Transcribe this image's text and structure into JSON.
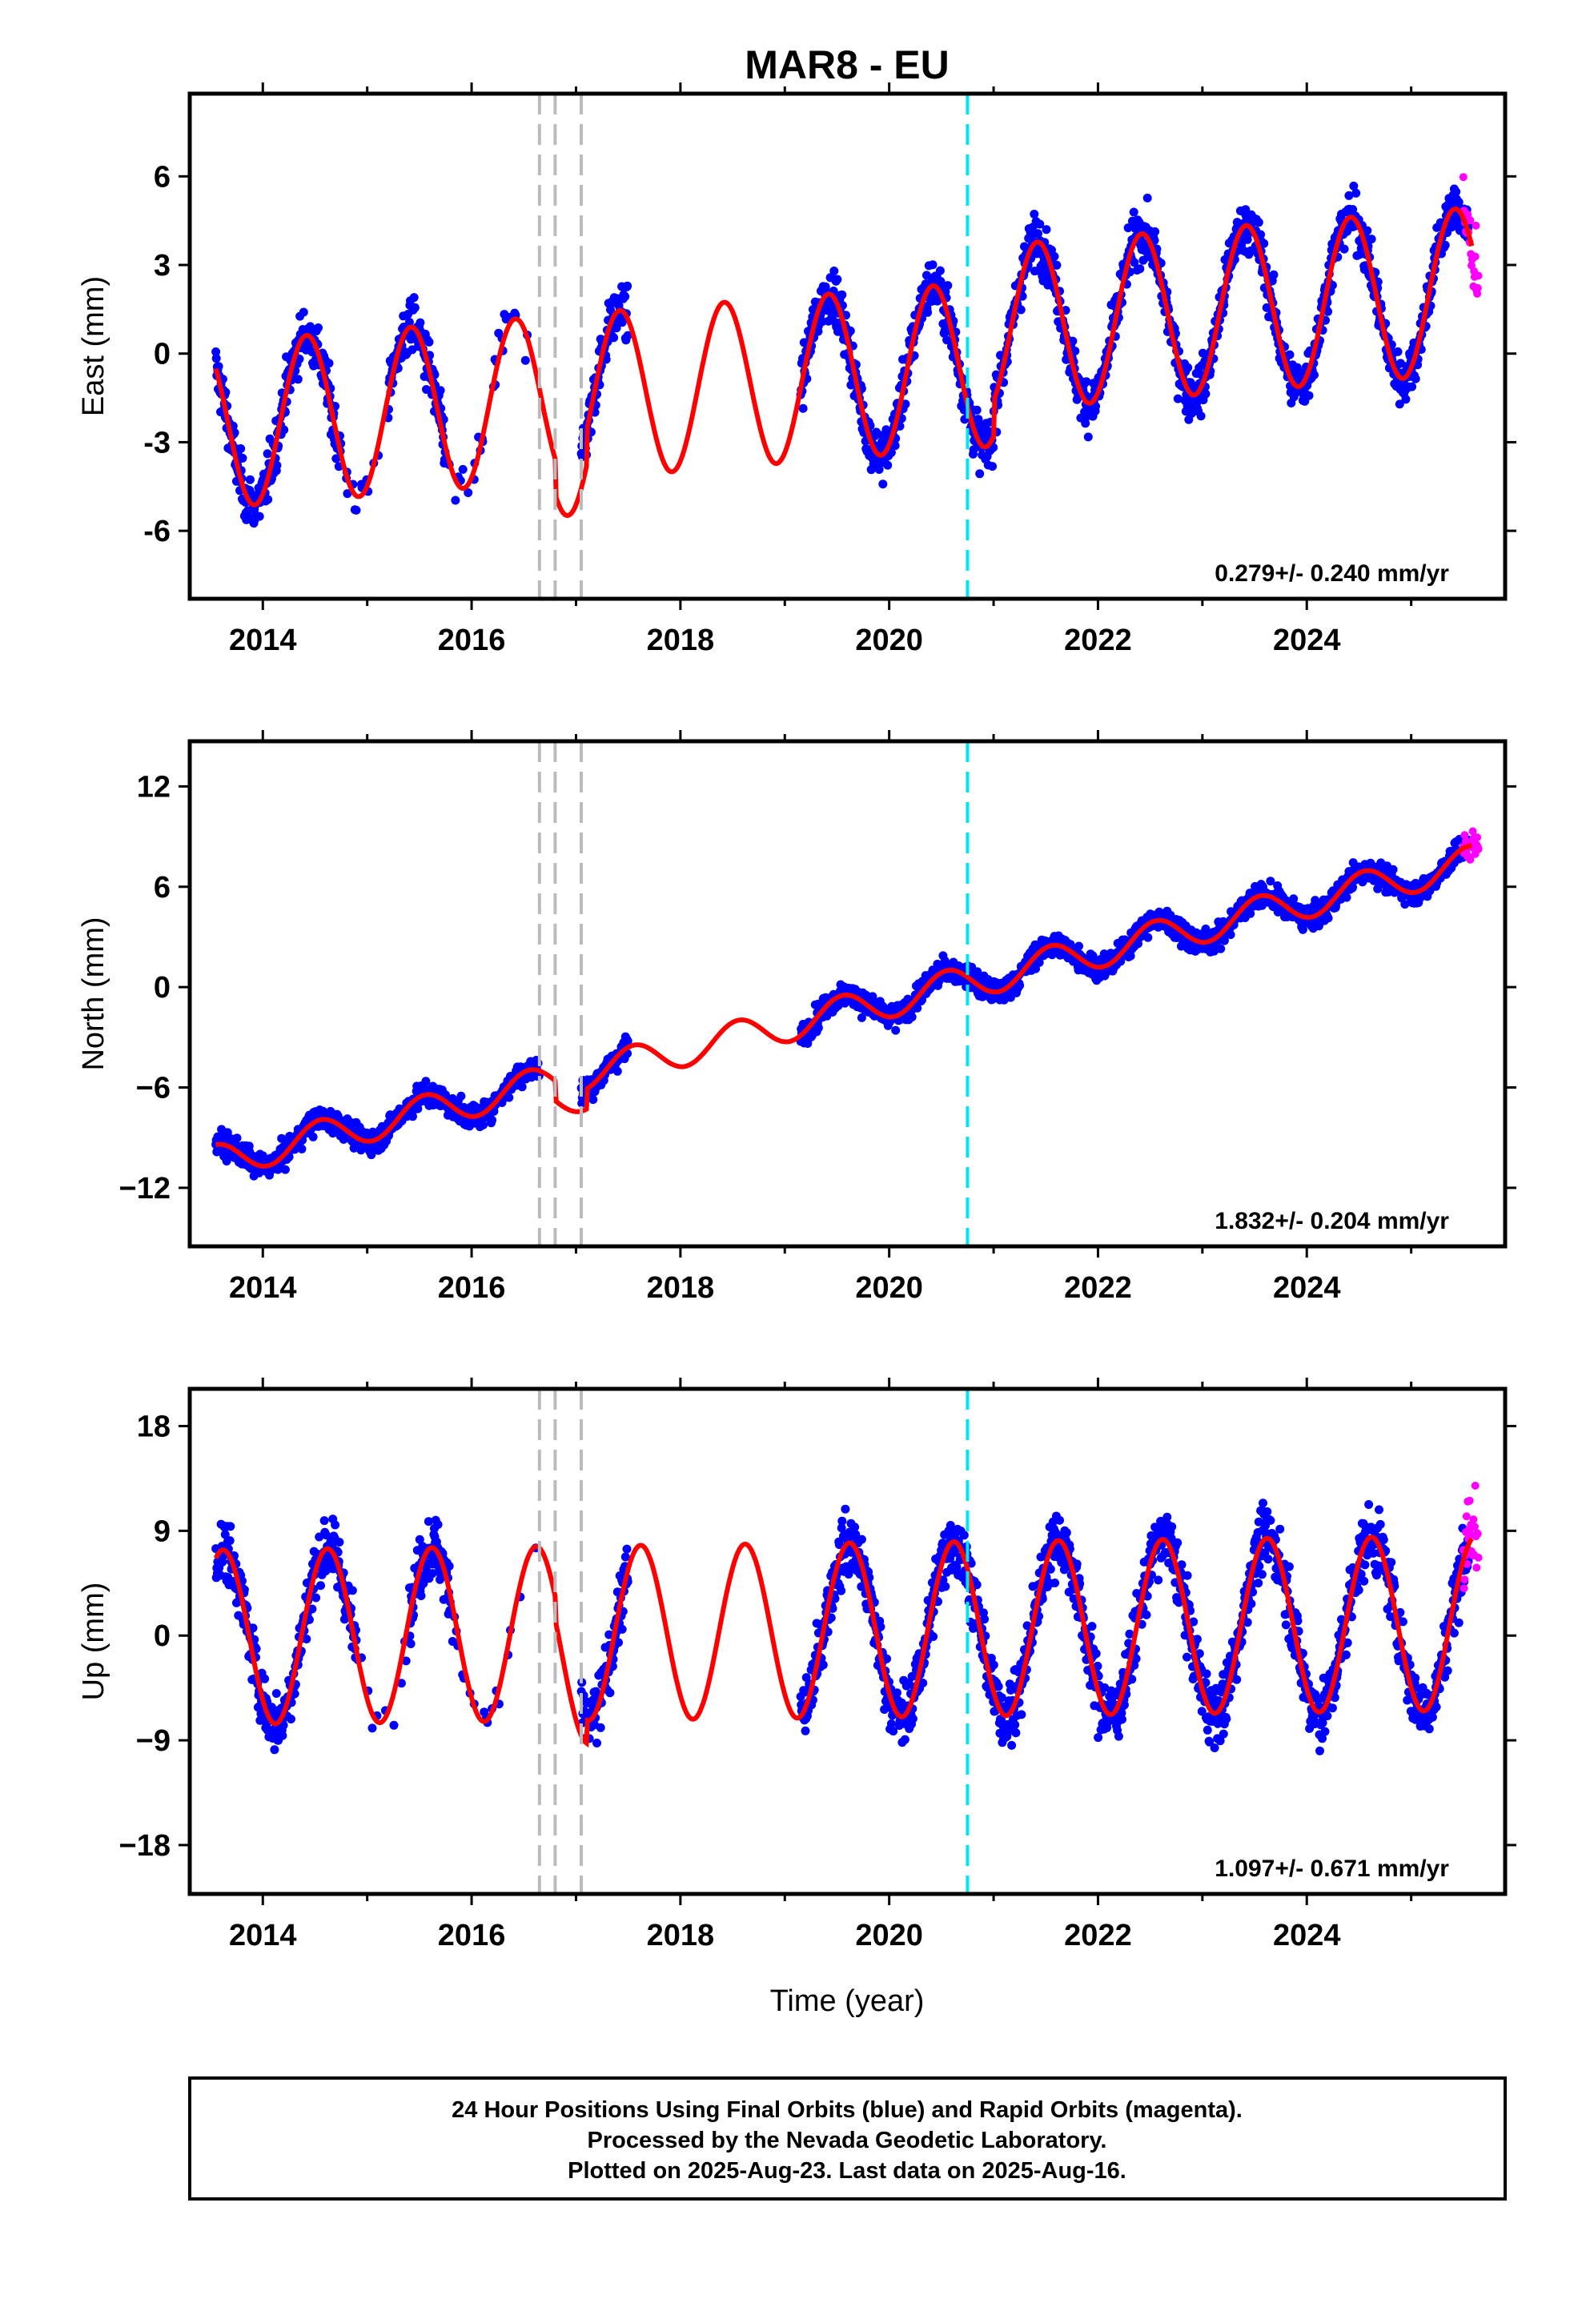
{
  "title": "MAR8 - EU",
  "colors": {
    "final_orbits": "#0000ff",
    "rapid_orbits": "#ff00ff",
    "model": "#ff0000",
    "equipment_change": "#bbbbbb",
    "event": "#00e5ee"
  },
  "x_axis_label": "Time (year)",
  "x_ticks": [
    "2014",
    "2016",
    "2018",
    "2020",
    "2022",
    "2024"
  ],
  "chart_data": [
    {
      "type": "scatter",
      "ylabel": "East (mm)",
      "xlim": [
        2013.3,
        2025.9
      ],
      "ylim": [
        -8.3,
        8.8
      ],
      "y_ticks": [
        6,
        3,
        0,
        -3,
        -6
      ],
      "y_tick_labels": [
        "6",
        "3",
        "0",
        "-3",
        "-6"
      ],
      "rate_label": "0.279+/- 0.240 mm/yr",
      "model": {
        "amplitude": 2.8,
        "offset": -0.9,
        "peak_phase": 0.42,
        "post_2021_shift": 1.2
      },
      "gaps": [
        [
          2016.65,
          2017.05
        ],
        [
          2017.5,
          2019.15
        ]
      ],
      "final_orbits_range": [
        2013.55,
        2025.55
      ],
      "rapid_orbits_range": [
        2025.5,
        2025.65
      ]
    },
    {
      "type": "scatter",
      "ylabel": "North (mm)",
      "xlim": [
        2013.3,
        2025.9
      ],
      "ylim": [
        -15.5,
        14.7
      ],
      "y_ticks": [
        12,
        6,
        0,
        -6,
        -12
      ],
      "y_tick_labels": [
        "12",
        "6",
        "0",
        "−6",
        "−12"
      ],
      "rate_label": "1.832+/- 0.204 mm/yr",
      "model": {
        "amplitude": 1.0,
        "start_value": -10.5,
        "end_value": 7.5
      },
      "gaps": [
        [
          2016.65,
          2017.05
        ],
        [
          2017.5,
          2019.15
        ]
      ],
      "final_orbits_range": [
        2013.55,
        2025.55
      ],
      "rapid_orbits_range": [
        2025.5,
        2025.65
      ]
    },
    {
      "type": "scatter",
      "ylabel": "Up (mm)",
      "xlim": [
        2013.3,
        2025.9
      ],
      "ylim": [
        -22.2,
        21.2
      ],
      "y_ticks": [
        18,
        9,
        0,
        -9,
        -18
      ],
      "y_tick_labels": [
        "18",
        "9",
        "0",
        "−9",
        "−18"
      ],
      "rate_label": "1.097+/- 0.671 mm/yr",
      "model": {
        "amplitude": 7.5,
        "offset": 0.4,
        "peak_phase": 0.62
      },
      "gaps": [
        [
          2016.65,
          2017.05
        ],
        [
          2017.5,
          2019.15
        ]
      ],
      "final_orbits_range": [
        2013.55,
        2025.55
      ],
      "rapid_orbits_range": [
        2025.5,
        2025.65
      ]
    }
  ],
  "equipment_changes": [
    2016.65,
    2016.8,
    2017.05
  ],
  "event_dates": [
    2020.75
  ],
  "footer": {
    "line1": "24 Hour Positions Using Final Orbits (blue) and Rapid Orbits (magenta).",
    "line2": "Processed by the Nevada Geodetic Laboratory.",
    "line3": "Plotted on 2025-Aug-23. Last data on 2025-Aug-16."
  }
}
